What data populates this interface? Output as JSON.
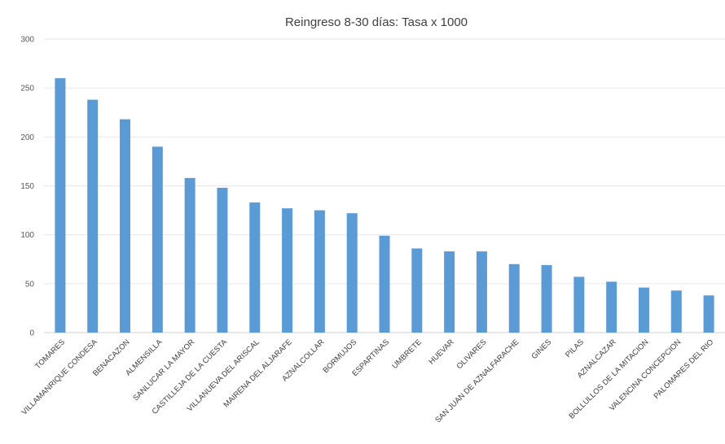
{
  "chart_data": {
    "type": "bar",
    "title": "Reingreso 8-30 días: Tasa x 1000",
    "xlabel": "",
    "ylabel": "",
    "ylim": [
      0,
      300
    ],
    "yticks": [
      0,
      50,
      100,
      150,
      200,
      250,
      300
    ],
    "grid": true,
    "bar_color": "#5B9BD5",
    "categories": [
      "TOMARES",
      "VILLAMANRIQUE CONDESA",
      "BENACAZON",
      "ALMENSILLA",
      "SANLUCAR LA MAYOR",
      "CASTILLEJA DE LA CUESTA",
      "VILLANUEVA DEL ARISCAL",
      "MAIRENA DEL ALJARAFE",
      "AZNALCOLLAR",
      "BORMUJOS",
      "ESPARTINAS",
      "UMBRETE",
      "HUEVAR",
      "OLIVARES",
      "SAN JUAN DE AZNALFARACHE",
      "GINES",
      "PILAS",
      "AZNALCAZAR",
      "BOLLULLOS DE LA MITACION",
      "VALENCINA CONCEPCION",
      "PALOMARES DEL RIO"
    ],
    "values": [
      260,
      238,
      218,
      190,
      158,
      148,
      133,
      127,
      125,
      122,
      99,
      86,
      83,
      83,
      70,
      69,
      57,
      52,
      46,
      43,
      38
    ]
  }
}
